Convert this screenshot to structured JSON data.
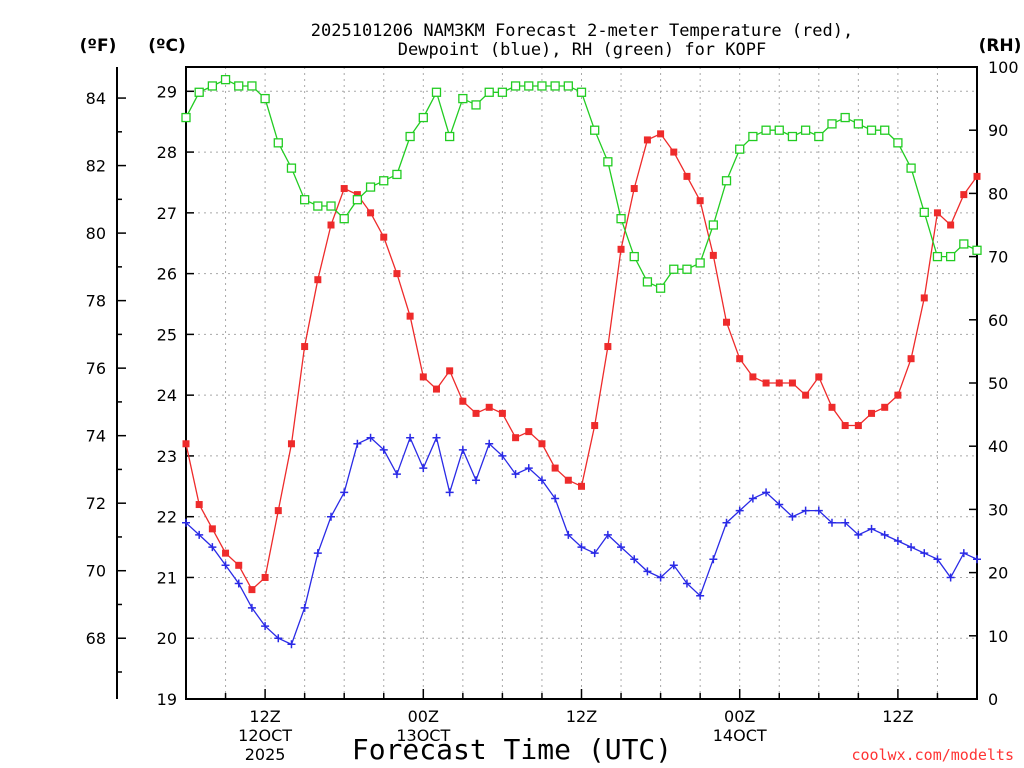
{
  "chart_data": {
    "type": "line",
    "title_line1": "2025101206 NAM3KM Forecast 2-meter Temperature (red),",
    "title_line2": "Dewpoint (blue), RH (green) for KOPF",
    "xlabel": "Forecast Time (UTC)",
    "credit": "coolwx.com/modelts",
    "units": {
      "fahrenheit": "(ºF)",
      "celsius": "(ºC)",
      "rh": "(RH)"
    },
    "y_celsius": {
      "min": 19,
      "max": 29.4,
      "ticks": [
        "19",
        "20",
        "21",
        "22",
        "23",
        "24",
        "25",
        "26",
        "27",
        "28",
        "29"
      ]
    },
    "y_fahrenheit": {
      "ticks": [
        "68",
        "70",
        "72",
        "74",
        "76",
        "78",
        "80",
        "82",
        "84"
      ],
      "values": [
        68,
        70,
        72,
        74,
        76,
        78,
        80,
        82,
        84
      ]
    },
    "y_rh": {
      "min": 0,
      "max": 100,
      "ticks": [
        "0",
        "10",
        "20",
        "30",
        "40",
        "50",
        "60",
        "70",
        "80",
        "90",
        "100"
      ]
    },
    "x_range_hours": [
      6,
      66
    ],
    "x_ticks": [
      {
        "hour": 12,
        "label": "12Z",
        "date": "12OCT",
        "year": "2025"
      },
      {
        "hour": 24,
        "label": "00Z",
        "date": "13OCT",
        "year": ""
      },
      {
        "hour": 36,
        "label": "12Z",
        "date": "",
        "year": ""
      },
      {
        "hour": 48,
        "label": "00Z",
        "date": "14OCT",
        "year": ""
      },
      {
        "hour": 60,
        "label": "12Z",
        "date": "",
        "year": ""
      }
    ],
    "series": [
      {
        "name": "2-meter Temperature",
        "unit": "C",
        "color": "#ee2b2b",
        "values": [
          23.2,
          22.2,
          21.8,
          21.4,
          21.2,
          20.8,
          21.0,
          22.1,
          23.2,
          24.8,
          25.9,
          26.8,
          27.4,
          27.3,
          27.0,
          26.6,
          26.0,
          25.3,
          24.3,
          24.1,
          24.4,
          23.9,
          23.7,
          23.8,
          23.7,
          23.3,
          23.4,
          23.2,
          22.8,
          22.6,
          22.5,
          23.5,
          24.8,
          26.4,
          27.4,
          28.2,
          28.3,
          28.0,
          27.6,
          27.2,
          26.3,
          25.2,
          24.6,
          24.3,
          24.2,
          24.2,
          24.2,
          24.0,
          24.3,
          23.8,
          23.5,
          23.5,
          23.7,
          23.8,
          24.0,
          24.6,
          25.6,
          27.0,
          26.8,
          27.3,
          27.6
        ]
      },
      {
        "name": "Dewpoint",
        "unit": "C",
        "color": "#2a2ae6",
        "values": [
          21.9,
          21.7,
          21.5,
          21.2,
          20.9,
          20.5,
          20.2,
          20.0,
          19.9,
          20.5,
          21.4,
          22.0,
          22.4,
          23.2,
          23.3,
          23.1,
          22.7,
          23.3,
          22.8,
          23.3,
          22.4,
          23.1,
          22.6,
          23.2,
          23.0,
          22.7,
          22.8,
          22.6,
          22.3,
          21.7,
          21.5,
          21.4,
          21.7,
          21.5,
          21.3,
          21.1,
          21.0,
          21.2,
          20.9,
          20.7,
          21.3,
          21.9,
          22.1,
          22.3,
          22.4,
          22.2,
          22.0,
          22.1,
          22.1,
          21.9,
          21.9,
          21.7,
          21.8,
          21.7,
          21.6,
          21.5,
          21.4,
          21.3,
          21.0,
          21.4,
          21.3
        ]
      },
      {
        "name": "RH",
        "unit": "%",
        "color": "#22cc22",
        "values": [
          92,
          96,
          97,
          98,
          97,
          97,
          95,
          88,
          84,
          79,
          78,
          78,
          76,
          79,
          81,
          82,
          83,
          89,
          92,
          96,
          89,
          95,
          94,
          96,
          96,
          97,
          97,
          97,
          97,
          97,
          96,
          90,
          85,
          76,
          70,
          66,
          65,
          68,
          68,
          69,
          75,
          82,
          87,
          89,
          90,
          90,
          89,
          90,
          89,
          91,
          92,
          91,
          90,
          90,
          88,
          84,
          77,
          70,
          70,
          72,
          71
        ]
      }
    ]
  }
}
